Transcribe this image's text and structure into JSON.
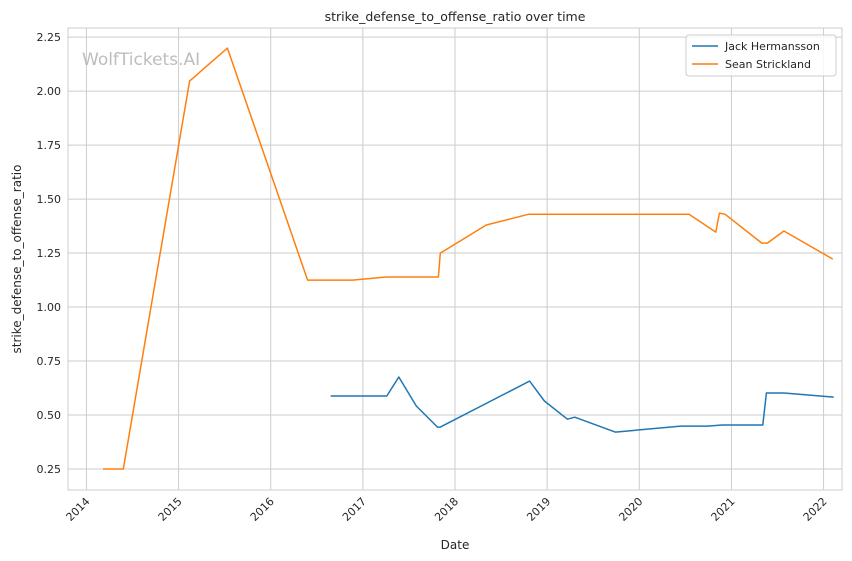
{
  "chart_data": {
    "type": "line",
    "title": "strike_defense_to_offense_ratio over time",
    "xlabel": "Date",
    "ylabel": "strike_defense_to_offense_ratio",
    "xlim": [
      2013.8,
      2022.2
    ],
    "ylim": [
      0.153,
      2.292
    ],
    "grid": true,
    "legend_position": "top-right",
    "watermark": "WolfTickets.AI",
    "x_ticks": [
      2014,
      2015,
      2016,
      2017,
      2018,
      2019,
      2020,
      2021,
      2022
    ],
    "x_tick_labels": [
      "2014",
      "2015",
      "2016",
      "2017",
      "2018",
      "2019",
      "2020",
      "2021",
      "2022"
    ],
    "y_ticks": [
      0.25,
      0.5,
      0.75,
      1.0,
      1.25,
      1.5,
      1.75,
      2.0,
      2.25
    ],
    "y_tick_labels": [
      "0.25",
      "0.50",
      "0.75",
      "1.00",
      "1.25",
      "1.50",
      "1.75",
      "2.00",
      "2.25"
    ],
    "series": [
      {
        "name": "Jack Hermansson",
        "color": "#1f77b4",
        "x": [
          2016.65,
          2017.26,
          2017.39,
          2017.58,
          2017.81,
          2017.84,
          2018.81,
          2018.97,
          2019.22,
          2019.3,
          2019.74,
          2020.45,
          2020.74,
          2020.9,
          2021.34,
          2021.38,
          2021.57,
          2022.11
        ],
        "y": [
          0.588,
          0.588,
          0.676,
          0.542,
          0.444,
          0.444,
          0.657,
          0.565,
          0.481,
          0.49,
          0.421,
          0.449,
          0.449,
          0.454,
          0.454,
          0.602,
          0.602,
          0.583
        ]
      },
      {
        "name": "Sean Strickland",
        "color": "#ff7f0e",
        "x": [
          2014.18,
          2014.4,
          2015.12,
          2015.53,
          2016.4,
          2016.89,
          2017.25,
          2017.82,
          2017.84,
          2018.34,
          2018.8,
          2020.54,
          2020.83,
          2020.87,
          2020.93,
          2021.33,
          2021.39,
          2021.57,
          2022.1
        ],
        "y": [
          0.25,
          0.25,
          2.046,
          2.199,
          1.125,
          1.125,
          1.139,
          1.139,
          1.25,
          1.38,
          1.43,
          1.43,
          1.347,
          1.435,
          1.43,
          1.296,
          1.296,
          1.352,
          1.222
        ]
      }
    ]
  }
}
